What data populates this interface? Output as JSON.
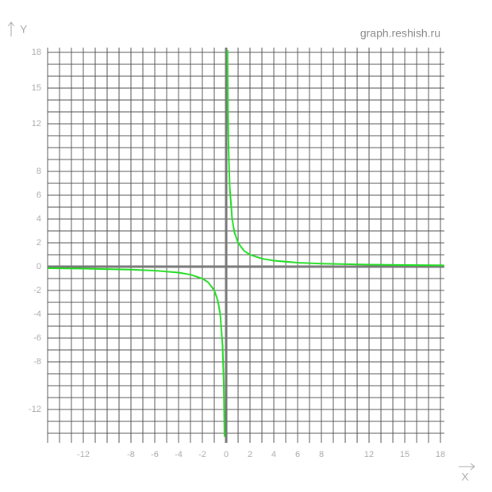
{
  "chart_data": {
    "type": "line",
    "watermark": "graph.reshish.ru",
    "x_label": "X",
    "y_label": "Y",
    "xlim": [
      -15,
      18.33
    ],
    "ylim": [
      -14.8,
      18.4
    ],
    "grid": true,
    "grid_step": 1,
    "xticks": [
      -12,
      -8,
      -6,
      -4,
      -2,
      0,
      2,
      4,
      6,
      8,
      12,
      15,
      18
    ],
    "yticks": [
      18,
      15,
      12,
      8,
      6,
      4,
      2,
      0,
      -2,
      -4,
      -6,
      -8,
      -12
    ],
    "x": [
      -15,
      -12,
      -8,
      -6,
      -4,
      -3,
      -2,
      -1.5,
      -1,
      -0.7,
      -0.5,
      -0.3,
      -0.2,
      -0.14,
      null,
      0.11,
      0.15,
      0.2,
      0.3,
      0.5,
      0.7,
      1,
      1.5,
      2,
      3,
      4,
      6,
      8,
      12,
      15,
      18.3
    ],
    "series": [
      {
        "color": "#22dd22",
        "values": [
          -0.13,
          -0.17,
          -0.25,
          -0.33,
          -0.5,
          -0.67,
          -1,
          -1.33,
          -2,
          -2.86,
          -4,
          -6.67,
          -10,
          -14.3,
          null,
          18.2,
          13.3,
          10,
          6.67,
          4,
          2.86,
          2,
          1.33,
          1,
          0.67,
          0.5,
          0.33,
          0.25,
          0.17,
          0.13,
          0.11
        ]
      }
    ]
  }
}
